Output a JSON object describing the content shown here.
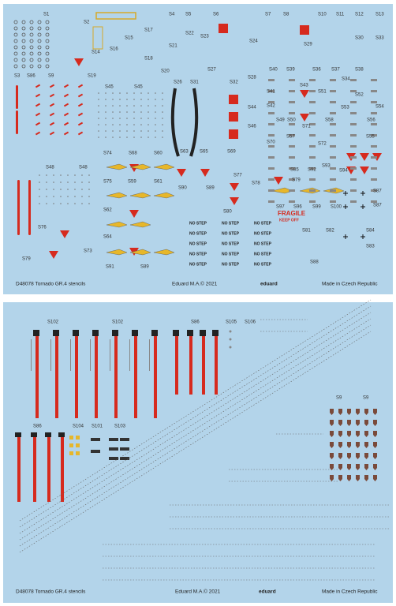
{
  "sheet1": {
    "labels": [
      "S1",
      "S2",
      "S4",
      "S5",
      "S6",
      "S7",
      "S8",
      "S10",
      "S11",
      "S12",
      "S13",
      "S15",
      "S17",
      "S21",
      "S22",
      "S23",
      "S24",
      "S29",
      "S30",
      "S33",
      "S14",
      "S16",
      "S18",
      "S19",
      "S3",
      "S86",
      "S9",
      "S20",
      "S26",
      "S31",
      "S27",
      "S28",
      "S32",
      "S40",
      "S39",
      "S36",
      "S37",
      "S38",
      "S45",
      "S45",
      "S41",
      "S43",
      "S52",
      "S42",
      "S44",
      "S46",
      "S49",
      "S50",
      "S53",
      "S54",
      "S74",
      "S68",
      "S60",
      "S63",
      "S65",
      "S69",
      "S57",
      "S70",
      "S72",
      "S55",
      "S48",
      "S48",
      "S85",
      "S92",
      "S93",
      "S94",
      "S75",
      "S59",
      "S61",
      "S77",
      "S78",
      "S90",
      "S89",
      "S79",
      "S87",
      "S97",
      "S96",
      "S99",
      "S100",
      "S80",
      "S87",
      "S62",
      "S76",
      "S81",
      "S82",
      "S84",
      "S64",
      "S73",
      "S83",
      "S79",
      "S91",
      "S89",
      "S88",
      "S71",
      "S56",
      "S51",
      "S58",
      "S34"
    ],
    "no_step": [
      "NO STEP",
      "NO STEP",
      "NO STEP",
      "NO STEP",
      "NO STEP",
      "NO STEP",
      "NO STEP",
      "NO STEP",
      "NO STEP",
      "NO STEP",
      "NO STEP",
      "NO STEP",
      "NO STEP",
      "NO STEP",
      "NO STEP"
    ],
    "fragile": "FRAGILE",
    "keep_off": "KEEP OFF",
    "footer": {
      "code": "D48078 Tornado GR.4 stencils",
      "copyright": "Eduard M.A.© 2021",
      "brand": "eduard",
      "origin": "Made in Czech Republic"
    }
  },
  "sheet2": {
    "labels": [
      "S102",
      "S102",
      "S86",
      "S105",
      "S106",
      "S86",
      "S104",
      "S101",
      "S103",
      "S9",
      "S9"
    ],
    "footer": {
      "code": "D48078 Tornado GR.4 stencils",
      "copyright": "Eduard M.A.© 2021",
      "brand": "eduard",
      "origin": "Made in Czech Republic"
    }
  }
}
